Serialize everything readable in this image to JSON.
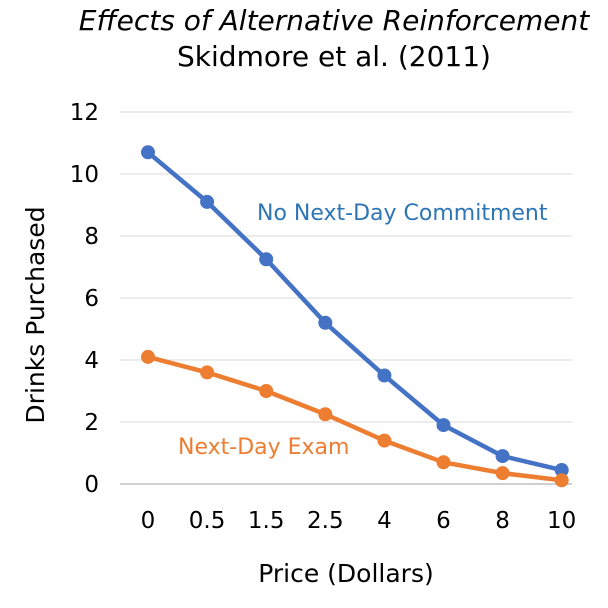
{
  "chart_data": {
    "type": "line",
    "title": "Effects of Alternative Reinforcement",
    "subtitle": "Skidmore et al. (2011)",
    "xlabel": "Price (Dollars)",
    "ylabel": "Drinks Purchased",
    "x": [
      "0",
      "0.5",
      "1.5",
      "2.5",
      "4",
      "6",
      "8",
      "10"
    ],
    "ylim": [
      0,
      12
    ],
    "yticks": [
      "0",
      "2",
      "4",
      "6",
      "8",
      "10",
      "12"
    ],
    "grid": true,
    "series": [
      {
        "name": "No Next-Day Commitment",
        "values": [
          10.7,
          9.1,
          7.25,
          5.2,
          3.5,
          1.9,
          0.9,
          0.45
        ],
        "color": "#4472C4"
      },
      {
        "name": "Next-Day Exam",
        "values": [
          4.1,
          3.6,
          3.0,
          2.25,
          1.4,
          0.7,
          0.35,
          0.12
        ],
        "color": "#ED7D31"
      }
    ]
  }
}
